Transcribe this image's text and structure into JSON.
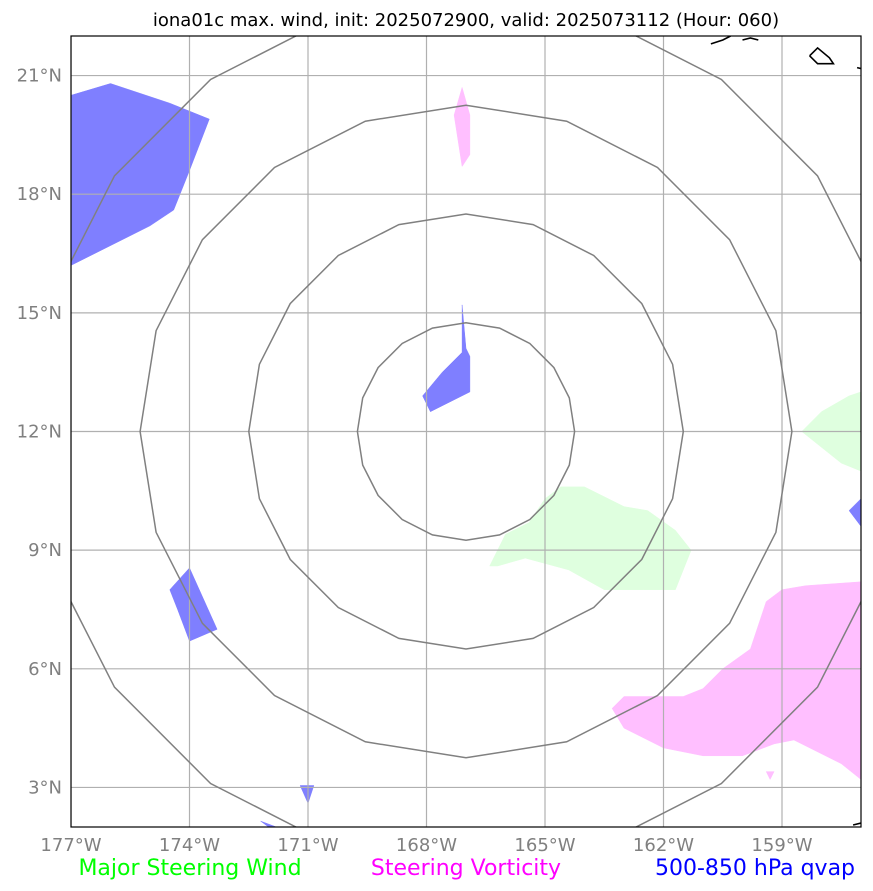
{
  "title": "iona01c max. wind, init: 2025072900, valid: 2025073112 (Hour: 060)",
  "map": {
    "lon_range": [
      -177,
      -157
    ],
    "lat_range": [
      2,
      22
    ],
    "lon_ticks": [
      {
        "value": -177,
        "label": "177°W"
      },
      {
        "value": -174,
        "label": "174°W"
      },
      {
        "value": -171,
        "label": "171°W"
      },
      {
        "value": -168,
        "label": "168°W"
      },
      {
        "value": -165,
        "label": "165°W"
      },
      {
        "value": -162,
        "label": "162°W"
      },
      {
        "value": -159,
        "label": "159°W"
      }
    ],
    "lat_ticks": [
      {
        "value": 21,
        "label": "21°N"
      },
      {
        "value": 18,
        "label": "18°N"
      },
      {
        "value": 15,
        "label": "15°N"
      },
      {
        "value": 12,
        "label": "12°N"
      },
      {
        "value": 9,
        "label": "9°N"
      },
      {
        "value": 6,
        "label": "6°N"
      },
      {
        "value": 3,
        "label": "3°N"
      }
    ],
    "grid": true,
    "storm_center": {
      "lon": -167,
      "lat": 12
    },
    "range_rings_deg": [
      2.75,
      5.5,
      8.25,
      11
    ],
    "colors": {
      "wind": "#7f7fff",
      "vorticity": "#ffbfff",
      "qvap": "#dfffdf",
      "ring": "#808080",
      "grid": "#b0b0b0",
      "coast": "#000000"
    },
    "regions": {
      "wind": [
        [
          [
            -177,
            16.2
          ],
          [
            -176,
            16.7
          ],
          [
            -175,
            17.2
          ],
          [
            -174.4,
            17.6
          ],
          [
            -174,
            18.6
          ],
          [
            -173.5,
            19.9
          ],
          [
            -174.5,
            20.3
          ],
          [
            -176,
            20.8
          ],
          [
            -177,
            20.5
          ]
        ],
        [
          [
            -168.1,
            12.9
          ],
          [
            -167.6,
            13.5
          ],
          [
            -167.1,
            14
          ],
          [
            -167.1,
            15.2
          ],
          [
            -167,
            14.1
          ],
          [
            -166.9,
            13.9
          ],
          [
            -166.9,
            13
          ],
          [
            -167.9,
            12.5
          ]
        ],
        [
          [
            -174.5,
            8
          ],
          [
            -174,
            8.55
          ],
          [
            -173.3,
            7
          ],
          [
            -174,
            6.7
          ],
          [
            -174.3,
            7.5
          ]
        ],
        [
          [
            -171.2,
            3.05
          ],
          [
            -170.85,
            3.05
          ],
          [
            -171,
            2.6
          ]
        ],
        [
          [
            -172,
            2
          ],
          [
            -172.2,
            2.15
          ],
          [
            -171.8,
            2
          ]
        ],
        [
          [
            -157.3,
            10
          ],
          [
            -157,
            10.3
          ],
          [
            -157,
            9.6
          ]
        ]
      ],
      "vorticity": [
        [
          [
            -167.1,
            20.7
          ],
          [
            -167.3,
            20
          ],
          [
            -167.1,
            18.7
          ],
          [
            -166.9,
            19
          ],
          [
            -166.9,
            20
          ]
        ],
        [
          [
            -163.3,
            5
          ],
          [
            -163,
            5.3
          ],
          [
            -161.5,
            5.3
          ],
          [
            -161,
            5.5
          ],
          [
            -160.5,
            6
          ],
          [
            -159.8,
            6.5
          ],
          [
            -159.4,
            7.7
          ],
          [
            -159,
            8
          ],
          [
            -158.4,
            8.1
          ],
          [
            -157,
            8.2
          ],
          [
            -157,
            3.2
          ],
          [
            -157.5,
            3.6
          ],
          [
            -158.7,
            4.2
          ],
          [
            -159.2,
            4.1
          ],
          [
            -160,
            3.8
          ],
          [
            -161,
            3.8
          ],
          [
            -162,
            4
          ],
          [
            -163,
            4.5
          ]
        ],
        [
          [
            -159.4,
            3.4
          ],
          [
            -159.3,
            3.2
          ],
          [
            -159.2,
            3.4
          ]
        ]
      ],
      "qvap": [
        [
          [
            -166.4,
            8.6
          ],
          [
            -166,
            9.4
          ],
          [
            -165.4,
            9.7
          ],
          [
            -165,
            10.3
          ],
          [
            -164.6,
            10.6
          ],
          [
            -164,
            10.6
          ],
          [
            -163,
            10.1
          ],
          [
            -162.4,
            10
          ],
          [
            -161.7,
            9.5
          ],
          [
            -161.3,
            9
          ],
          [
            -161.7,
            8
          ],
          [
            -162.5,
            8
          ],
          [
            -163.5,
            8
          ],
          [
            -164.4,
            8.5
          ],
          [
            -165.5,
            8.8
          ],
          [
            -166.2,
            8.6
          ]
        ],
        [
          [
            -158.5,
            12
          ],
          [
            -158,
            12.5
          ],
          [
            -157.3,
            12.9
          ],
          [
            -157,
            13
          ],
          [
            -157,
            11
          ],
          [
            -157.5,
            11.2
          ],
          [
            -158,
            11.6
          ]
        ]
      ]
    },
    "coastlines": [
      [
        [
          -158.3,
          21.5
        ],
        [
          -158.1,
          21.7
        ],
        [
          -157.8,
          21.45
        ],
        [
          -157.7,
          21.3
        ],
        [
          -158.1,
          21.3
        ],
        [
          -158.3,
          21.5
        ]
      ],
      [
        [
          -160,
          21.9
        ],
        [
          -159.8,
          21.95
        ],
        [
          -159.6,
          21.9
        ]
      ],
      [
        [
          -160.8,
          21.8
        ],
        [
          -160.5,
          21.9
        ],
        [
          -160.3,
          22
        ]
      ],
      [
        [
          -157.1,
          21.2
        ],
        [
          -156.9,
          21.15
        ],
        [
          -157.0,
          21.05
        ]
      ],
      [
        [
          -157.2,
          2.05
        ],
        [
          -157,
          2.1
        ]
      ]
    ]
  },
  "legend": [
    {
      "label": "Major Steering Wind",
      "color": "#00ff00"
    },
    {
      "label": "Steering Vorticity",
      "color": "#ff00ff"
    },
    {
      "label": "500-850 hPa qvap",
      "color": "#0000ff"
    }
  ]
}
